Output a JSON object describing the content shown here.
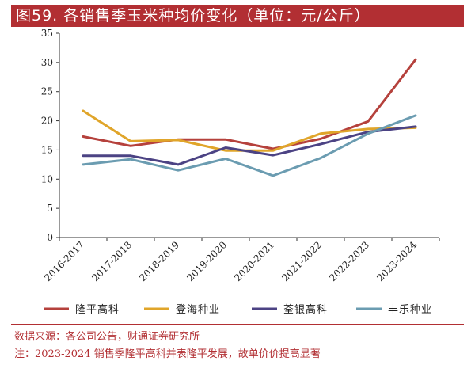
{
  "title": "图59. 各销售季玉米种均价变化（单位：元/公斤）",
  "chart_data": {
    "type": "line",
    "categories": [
      "2016-2017",
      "2017-2018",
      "2018-2019",
      "2019-2020",
      "2020-2021",
      "2021-2022",
      "2022-2023",
      "2023-2024"
    ],
    "ylim": [
      0,
      35
    ],
    "yticks": [
      0,
      5,
      10,
      15,
      20,
      25,
      30,
      35
    ],
    "grid": false,
    "legend_position": "bottom",
    "series": [
      {
        "name": "隆平高科",
        "color": "#b5413c",
        "values": [
          17.3,
          15.7,
          16.8,
          16.8,
          15.2,
          16.9,
          19.9,
          30.5
        ]
      },
      {
        "name": "登海种业",
        "color": "#e0a52a",
        "values": [
          21.7,
          16.5,
          16.7,
          14.9,
          14.9,
          17.8,
          18.6,
          18.8
        ]
      },
      {
        "name": "荃银高科",
        "color": "#4c4384",
        "values": [
          14.0,
          14.0,
          12.5,
          15.4,
          14.1,
          16.0,
          18.1,
          19.0
        ]
      },
      {
        "name": "丰乐种业",
        "color": "#6b9cb1",
        "values": [
          12.5,
          13.4,
          11.5,
          13.5,
          10.6,
          13.6,
          17.8,
          20.9
        ]
      }
    ]
  },
  "notes": {
    "source": "数据来源：各公司公告，财通证券研究所",
    "footnote": "注：2023-2024 销售季隆平高科并表隆平发展，故单价价提高显著"
  }
}
